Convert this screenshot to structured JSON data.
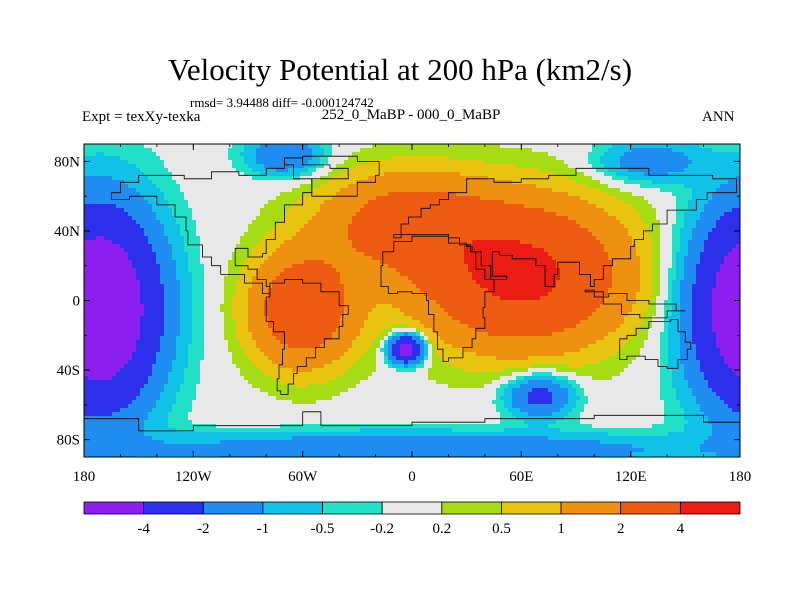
{
  "title": "Velocity Potential at 200 hPa (km2/s)",
  "stats": "rmsd= 3.94488 diff= -0.000124742",
  "left_label": "Expt = texXy-texka",
  "center_label": "252_0_MaBP - 000_0_MaBP",
  "right_label": "ANN",
  "chart_data": {
    "type": "heatmap",
    "title": "Velocity Potential at 200 hPa (km2/s)",
    "subtitle": "252_0_MaBP - 000_0_MaBP",
    "units": "km2/s",
    "x_axis": {
      "range": [
        -180,
        180
      ],
      "tick_values": [
        -180,
        -120,
        -60,
        0,
        60,
        120,
        180
      ],
      "tick_labels": [
        "180",
        "120W",
        "60W",
        "0",
        "60E",
        "120E",
        "180"
      ]
    },
    "y_axis": {
      "range": [
        -90,
        90
      ],
      "tick_values": [
        80,
        40,
        0,
        -40,
        -80
      ],
      "tick_labels": [
        "80N",
        "40N",
        "0",
        "40S",
        "80S"
      ]
    },
    "colorbar": {
      "levels": [
        "-4",
        "-2",
        "-1",
        "-0.5",
        "-0.2",
        "0.2",
        "0.5",
        "1",
        "2",
        "4"
      ],
      "colors": [
        "#8C1EF0",
        "#2D30EA",
        "#1E8CF0",
        "#11C2E8",
        "#20E0C8",
        "#E8E8E8",
        "#A5DC14",
        "#E8C30F",
        "#EE9110",
        "#EE5C12",
        "#EA1C14"
      ]
    },
    "field_centers": [
      {
        "lon": -172,
        "lat": -5,
        "value": -7,
        "sx": 32,
        "sy": 55
      },
      {
        "lon": 188,
        "lat": -5,
        "value": -7,
        "sx": 32,
        "sy": 55
      },
      {
        "lon": 60,
        "lat": 15,
        "value": 4.6,
        "sx": 55,
        "sy": 40
      },
      {
        "lon": -60,
        "lat": -5,
        "value": 3.4,
        "sx": 28,
        "sy": 32
      },
      {
        "lon": -5,
        "lat": 45,
        "value": 2.6,
        "sx": 45,
        "sy": 28
      },
      {
        "lon": -3,
        "lat": -28,
        "value": -5.5,
        "sx": 9,
        "sy": 8
      },
      {
        "lon": 70,
        "lat": -55,
        "value": -2.6,
        "sx": 18,
        "sy": 12
      },
      {
        "lon": -70,
        "lat": 84,
        "value": -2.0,
        "sx": 20,
        "sy": 12
      },
      {
        "lon": 130,
        "lat": 80,
        "value": -1.6,
        "sx": 28,
        "sy": 12
      },
      {
        "lon": 0,
        "lat": -86,
        "value": -2.0,
        "sx": 150,
        "sy": 10
      }
    ]
  },
  "colors": {
    "background": "#ffffff",
    "frame": "#000000",
    "coastline": "#000000"
  }
}
